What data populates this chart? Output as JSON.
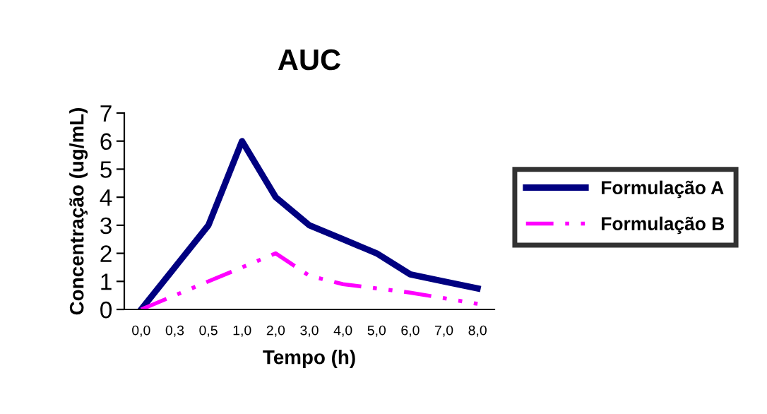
{
  "chart_data": {
    "type": "line",
    "title": "AUC",
    "xlabel": "Tempo (h)",
    "ylabel": "Concentração (ug/mL)",
    "categories": [
      "0,0",
      "0,3",
      "0,5",
      "1,0",
      "2,0",
      "3,0",
      "4,0",
      "5,0",
      "6,0",
      "7,0",
      "8,0"
    ],
    "series": [
      {
        "name": "Formulação A",
        "color": "#000080",
        "line_style": "solid",
        "values": [
          0,
          1.5,
          3,
          6,
          4,
          3,
          2.5,
          2,
          1.25,
          1,
          0.75
        ]
      },
      {
        "name": "Formulação B",
        "color": "#ff00ff",
        "line_style": "dashed",
        "values": [
          0,
          0.5,
          1,
          1.5,
          2,
          1.2,
          0.9,
          0.75,
          0.6,
          0.4,
          0.2
        ]
      }
    ],
    "ylim": [
      0,
      7
    ],
    "yticks": [
      0,
      1,
      2,
      3,
      4,
      5,
      6,
      7
    ],
    "grid": false,
    "legend": "right",
    "marker": "none"
  }
}
